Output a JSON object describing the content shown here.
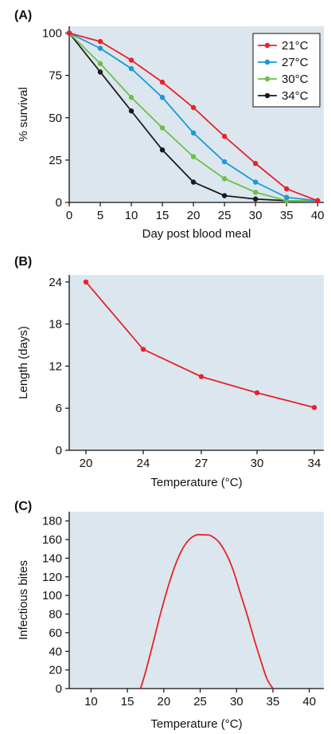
{
  "colors": {
    "plot_bg": "#dce6ee",
    "axis": "#111111",
    "red": "#e8212b",
    "blue": "#1a9ad6",
    "green": "#6cbf4a",
    "black": "#1a1a1a"
  },
  "chart_data": [
    {
      "panel": "(A)",
      "type": "line",
      "xlabel": "Day post blood meal",
      "ylabel": "% survival",
      "xlim": [
        0,
        41
      ],
      "ylim": [
        0,
        104
      ],
      "xticks": [
        0,
        5,
        10,
        15,
        20,
        25,
        30,
        35,
        40
      ],
      "yticks": [
        0,
        25,
        50,
        75,
        100
      ],
      "legend": "top-right",
      "grid": false,
      "x": [
        0,
        5,
        10,
        15,
        20,
        25,
        30,
        35,
        40
      ],
      "series": [
        {
          "name": "21°C",
          "color": "#e8212b",
          "values": [
            100,
            95,
            84,
            71,
            56,
            39,
            23,
            8,
            1
          ]
        },
        {
          "name": "27°C",
          "color": "#1a9ad6",
          "values": [
            100,
            91,
            79,
            62,
            41,
            24,
            12,
            3,
            1
          ]
        },
        {
          "name": "30°C",
          "color": "#6cbf4a",
          "values": [
            100,
            82,
            62,
            44,
            27,
            14,
            6,
            1,
            1
          ]
        },
        {
          "name": "34°C",
          "color": "#1a1a1a",
          "values": [
            100,
            77,
            54,
            31,
            12,
            4,
            2,
            1,
            1
          ]
        }
      ]
    },
    {
      "panel": "(B)",
      "type": "line",
      "xlabel": "Temperature (°C)",
      "ylabel": "Length (days)",
      "categories": [
        "20",
        "24",
        "27",
        "30",
        "34"
      ],
      "ylim": [
        0,
        25
      ],
      "yticks": [
        0,
        6,
        12,
        18,
        24
      ],
      "grid": false,
      "series": [
        {
          "color": "#e8212b",
          "values": [
            24,
            14.4,
            10.5,
            8.2,
            6.1
          ]
        }
      ]
    },
    {
      "panel": "(C)",
      "type": "line",
      "xlabel": "Temperature (°C)",
      "ylabel": "Infectious bites",
      "xlim": [
        7,
        42
      ],
      "ylim": [
        0,
        190
      ],
      "xticks": [
        10,
        15,
        20,
        25,
        30,
        35,
        40
      ],
      "yticks": [
        0,
        20,
        40,
        60,
        80,
        100,
        120,
        140,
        160,
        180
      ],
      "grid": false,
      "series": [
        {
          "color": "#e8212b",
          "x": [
            16.8,
            17.5,
            18.5,
            19.5,
            20.5,
            21.5,
            22.5,
            23.5,
            24.5,
            25.5,
            26.0,
            26.5,
            27.5,
            28.5,
            29.5,
            30.5,
            31.5,
            32.5,
            33.5,
            34.2,
            35.0
          ],
          "values": [
            0,
            18,
            48,
            79,
            107,
            131,
            149,
            160,
            165,
            165,
            165,
            164,
            158,
            146,
            128,
            103,
            78,
            51,
            26,
            10,
            0
          ]
        }
      ]
    }
  ]
}
